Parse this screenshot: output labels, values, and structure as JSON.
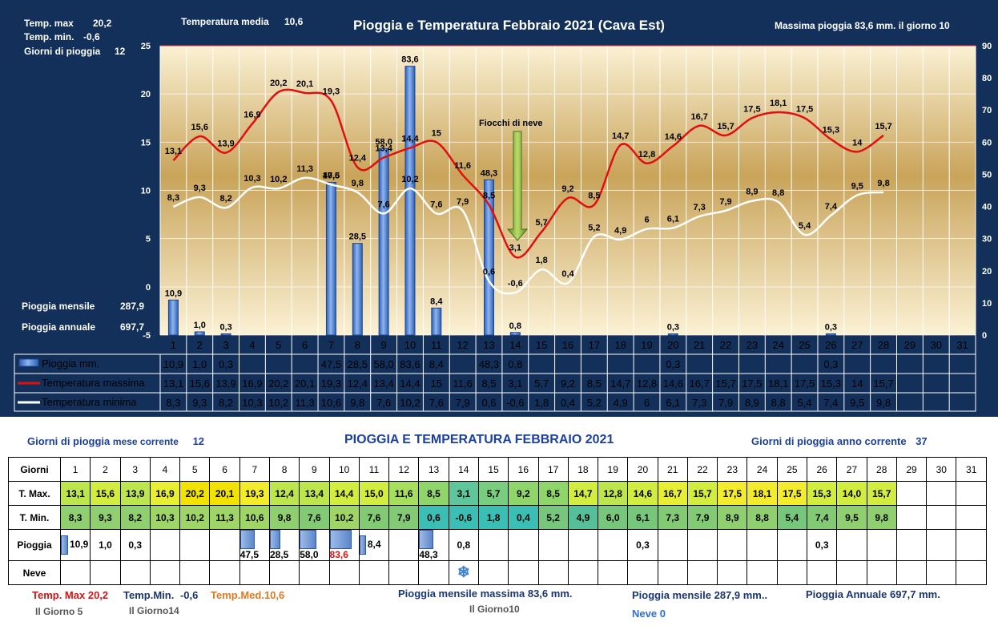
{
  "chart": {
    "title": "Pioggia e Temperatura Febbraio 2021 (Cava Est)",
    "temp_max_label": "Temp. max",
    "temp_max_value": "20,2",
    "temp_min_label": "Temp.  min.",
    "temp_min_value": "-0,6",
    "rain_days_label": "Giorni  di pioggia",
    "rain_days_value": "12",
    "temp_media_label": "Temperatura media",
    "temp_media_value": "10,6",
    "max_rain_text": "Massima pioggia  83,6 mm. il giorno  10",
    "monthly_rain_label": "Pioggia mensile",
    "monthly_rain_value": "287,9",
    "annual_rain_label": "Pioggia annuale",
    "annual_rain_value": "697,7",
    "annotation": "Fiocchi di neve",
    "legend_rain": "Pioggia mm.",
    "legend_tmax": "Temperatura massima",
    "legend_tmin": "Temperatura minima"
  },
  "chart_data": {
    "type": "bar",
    "title": "Pioggia e Temperatura Febbraio 2021 (Cava Est)",
    "categories": [
      "1",
      "2",
      "3",
      "4",
      "5",
      "6",
      "7",
      "8",
      "9",
      "10",
      "11",
      "12",
      "13",
      "14",
      "15",
      "16",
      "17",
      "18",
      "19",
      "20",
      "21",
      "22",
      "23",
      "24",
      "25",
      "26",
      "27",
      "28",
      "29",
      "30",
      "31"
    ],
    "left_axis": {
      "min": -5,
      "max": 25,
      "ticks": [
        "-5",
        "0",
        "5",
        "10",
        "15",
        "20",
        "25"
      ]
    },
    "right_axis": {
      "min": 0,
      "max": 90,
      "ticks": [
        "0",
        "10",
        "20",
        "30",
        "40",
        "50",
        "60",
        "70",
        "80",
        "90"
      ]
    },
    "series": [
      {
        "name": "Pioggia mm.",
        "axis": "right",
        "color": "#4d86d4",
        "values": [
          10.9,
          1.0,
          0.3,
          null,
          null,
          null,
          47.5,
          28.5,
          58.0,
          83.6,
          8.4,
          null,
          48.3,
          0.8,
          null,
          null,
          null,
          null,
          null,
          0.3,
          null,
          null,
          null,
          null,
          null,
          0.3,
          null,
          null,
          null,
          null,
          null
        ],
        "labels": [
          "10,9",
          "1,0",
          "0,3",
          "",
          "",
          "",
          "47,5",
          "28,5",
          "58,0",
          "83,6",
          "8,4",
          "",
          "48,3",
          "0,8",
          "",
          "",
          "",
          "",
          "",
          "0,3",
          "",
          "",
          "",
          "",
          "",
          "0,3",
          "",
          "",
          "",
          "",
          ""
        ]
      },
      {
        "name": "Temperatura massima",
        "axis": "left",
        "color": "#e01010",
        "values": [
          13.1,
          15.6,
          13.9,
          16.9,
          20.2,
          20.1,
          19.3,
          12.4,
          13.4,
          14.4,
          15.0,
          11.6,
          8.5,
          3.1,
          5.7,
          9.2,
          8.5,
          14.7,
          12.8,
          14.6,
          16.7,
          15.7,
          17.5,
          18.1,
          17.5,
          15.3,
          14.0,
          15.7,
          null,
          null,
          null
        ],
        "labels": [
          "13,1",
          "15,6",
          "13,9",
          "16,9",
          "20,2",
          "20,1",
          "19,3",
          "12,4",
          "13,4",
          "14,4",
          "15",
          "11,6",
          "8,5",
          "3,1",
          "5,7",
          "9,2",
          "8,5",
          "14,7",
          "12,8",
          "14,6",
          "16,7",
          "15,7",
          "17,5",
          "18,1",
          "17,5",
          "15,3",
          "14",
          "15,7",
          "",
          "",
          ""
        ]
      },
      {
        "name": "Temperatura minima",
        "axis": "left",
        "color": "#ffffff",
        "values": [
          8.3,
          9.3,
          8.2,
          10.3,
          10.2,
          11.3,
          10.6,
          9.8,
          7.6,
          10.2,
          7.6,
          7.9,
          0.6,
          -0.6,
          1.8,
          0.4,
          5.2,
          4.9,
          6.0,
          6.1,
          7.3,
          7.9,
          8.9,
          8.8,
          5.4,
          7.4,
          9.5,
          9.8,
          null,
          null,
          null
        ],
        "labels": [
          "8,3",
          "9,3",
          "8,2",
          "10,3",
          "10,2",
          "11,3",
          "10,6",
          "9,8",
          "7,6",
          "10,2",
          "7,6",
          "7,9",
          "0,6",
          "-0,6",
          "1,8",
          "0,4",
          "5,2",
          "4,9",
          "6",
          "6,1",
          "7,3",
          "7,9",
          "8,9",
          "8,8",
          "5,4",
          "7,4",
          "9,5",
          "9,8",
          "",
          "",
          ""
        ]
      }
    ],
    "grid": true,
    "legend_placement": "bottom-data-table"
  },
  "table": {
    "title": "PIOGGIA E TEMPERATURA FEBBRAIO 2021",
    "rain_days_month_label": "Giorni di pioggia",
    "rain_days_month_suffix": "mese corrente",
    "rain_days_month_value": "12",
    "rain_days_year_label": "Giorni di pioggia anno corrente",
    "rain_days_year_value": "37",
    "header_days": "Giorni",
    "row_tmax": "T. Max.",
    "row_tmin": "T. Min.",
    "row_rain": "Pioggia",
    "row_snow": "Neve",
    "days": [
      "1",
      "2",
      "3",
      "4",
      "5",
      "6",
      "7",
      "8",
      "9",
      "10",
      "11",
      "12",
      "13",
      "14",
      "15",
      "16",
      "17",
      "18",
      "19",
      "20",
      "21",
      "22",
      "23",
      "24",
      "25",
      "26",
      "27",
      "28",
      "29",
      "30",
      "31"
    ],
    "tmax": [
      "13,1",
      "15,6",
      "13,9",
      "16,9",
      "20,2",
      "20,1",
      "19,3",
      "12,4",
      "13,4",
      "14,4",
      "15,0",
      "11,6",
      "8,5",
      "3,1",
      "5,7",
      "9,2",
      "8,5",
      "14,7",
      "12,8",
      "14,6",
      "16,7",
      "15,7",
      "17,5",
      "18,1",
      "17,5",
      "15,3",
      "14,0",
      "15,7",
      "",
      "",
      ""
    ],
    "tmin": [
      "8,3",
      "9,3",
      "8,2",
      "10,3",
      "10,2",
      "11,3",
      "10,6",
      "9,8",
      "7,6",
      "10,2",
      "7,6",
      "7,9",
      "0,6",
      "-0,6",
      "1,8",
      "0,4",
      "5,2",
      "4,9",
      "6,0",
      "6,1",
      "7,3",
      "7,9",
      "8,9",
      "8,8",
      "5,4",
      "7,4",
      "9,5",
      "9,8",
      "",
      "",
      ""
    ],
    "rain": [
      "10,9",
      "1,0",
      "0,3",
      "",
      "",
      "",
      "47,5",
      "28,5",
      "58,0",
      "83,6",
      "8,4",
      "",
      "48,3",
      "0,8",
      "",
      "",
      "",
      "",
      "",
      "0,3",
      "",
      "",
      "",
      "",
      "",
      "0,3",
      "",
      "",
      "",
      "",
      ""
    ],
    "snow_day": 14,
    "max_rain_day": 10,
    "snow_icon": "snowflake-icon"
  },
  "footer": {
    "tmax_label": "Temp. Max",
    "tmax_value": "20,2",
    "tmax_day": "Il Giorno  5",
    "tmin_label": "Temp.Min.",
    "tmin_value": "-0,6",
    "tmin_day": "Il Giorno14",
    "tmed_label": "Temp.Med.",
    "tmed_value": "10,6",
    "max_month_rain": "Pioggia mensile massima 83,6   mm.",
    "max_month_rain_day": "Il Giorno10",
    "month_rain": "Pioggia mensile  287,9 mm..",
    "annual_rain": "Pioggia Annuale  697,7    mm.",
    "snow_text": "Neve 0"
  },
  "colors": {
    "dark_bg": "#13305a",
    "red_line": "#e01010",
    "title_blue": "#1b3fa0",
    "footer_red": "#d21414",
    "footer_navy": "#1b3570",
    "footer_orange": "#e07a22",
    "footer_blue": "#2d6fd6"
  }
}
